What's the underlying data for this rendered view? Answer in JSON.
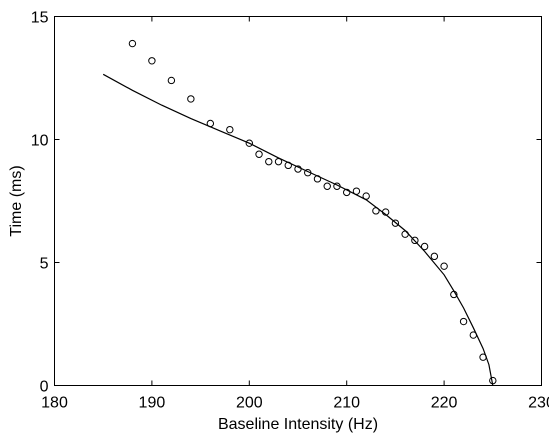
{
  "chart_data": {
    "type": "scatter",
    "title": "",
    "xlabel": "Baseline Intensity (Hz)",
    "ylabel": "Time (ms)",
    "xlim": [
      180,
      230
    ],
    "ylim": [
      0,
      15
    ],
    "x_ticks": [
      180,
      190,
      200,
      210,
      220,
      230
    ],
    "y_ticks": [
      0,
      5,
      10,
      15
    ],
    "x_tick_labels": [
      "180",
      "190",
      "200",
      "210",
      "220",
      "230"
    ],
    "y_tick_labels": [
      "0",
      "5",
      "10",
      "15"
    ],
    "grid": false,
    "legend": "none",
    "series": [
      {
        "kind": "markers",
        "marker": "circle-open",
        "color": "#000000",
        "points": [
          {
            "x": 188,
            "y": 13.9
          },
          {
            "x": 190,
            "y": 13.2
          },
          {
            "x": 192,
            "y": 12.4
          },
          {
            "x": 194,
            "y": 11.65
          },
          {
            "x": 196,
            "y": 10.65
          },
          {
            "x": 198,
            "y": 10.4
          },
          {
            "x": 200,
            "y": 9.85
          },
          {
            "x": 201,
            "y": 9.4
          },
          {
            "x": 202,
            "y": 9.1
          },
          {
            "x": 203,
            "y": 9.1
          },
          {
            "x": 204,
            "y": 8.95
          },
          {
            "x": 205,
            "y": 8.8
          },
          {
            "x": 206,
            "y": 8.65
          },
          {
            "x": 207,
            "y": 8.4
          },
          {
            "x": 208,
            "y": 8.1
          },
          {
            "x": 209,
            "y": 8.1
          },
          {
            "x": 210,
            "y": 7.85
          },
          {
            "x": 211,
            "y": 7.9
          },
          {
            "x": 212,
            "y": 7.7
          },
          {
            "x": 213,
            "y": 7.1
          },
          {
            "x": 214,
            "y": 7.05
          },
          {
            "x": 215,
            "y": 6.6
          },
          {
            "x": 216,
            "y": 6.15
          },
          {
            "x": 217,
            "y": 5.9
          },
          {
            "x": 218,
            "y": 5.65
          },
          {
            "x": 219,
            "y": 5.25
          },
          {
            "x": 220,
            "y": 4.85
          },
          {
            "x": 221,
            "y": 3.7
          },
          {
            "x": 222,
            "y": 2.6
          },
          {
            "x": 223,
            "y": 2.05
          },
          {
            "x": 224,
            "y": 1.15
          },
          {
            "x": 225,
            "y": 0.2
          }
        ]
      },
      {
        "kind": "line",
        "color": "#000000",
        "points": [
          {
            "x": 185,
            "y": 12.65
          },
          {
            "x": 188,
            "y": 12.0
          },
          {
            "x": 191,
            "y": 11.4
          },
          {
            "x": 194,
            "y": 10.85
          },
          {
            "x": 197,
            "y": 10.35
          },
          {
            "x": 200,
            "y": 9.85
          },
          {
            "x": 203,
            "y": 9.25
          },
          {
            "x": 206,
            "y": 8.7
          },
          {
            "x": 209,
            "y": 8.15
          },
          {
            "x": 212,
            "y": 7.55
          },
          {
            "x": 214,
            "y": 6.95
          },
          {
            "x": 216,
            "y": 6.3
          },
          {
            "x": 218,
            "y": 5.45
          },
          {
            "x": 220,
            "y": 4.5
          },
          {
            "x": 221,
            "y": 3.85
          },
          {
            "x": 222,
            "y": 3.15
          },
          {
            "x": 223,
            "y": 2.35
          },
          {
            "x": 224,
            "y": 1.5
          },
          {
            "x": 224.6,
            "y": 0.85
          },
          {
            "x": 225,
            "y": 0
          }
        ]
      }
    ]
  }
}
